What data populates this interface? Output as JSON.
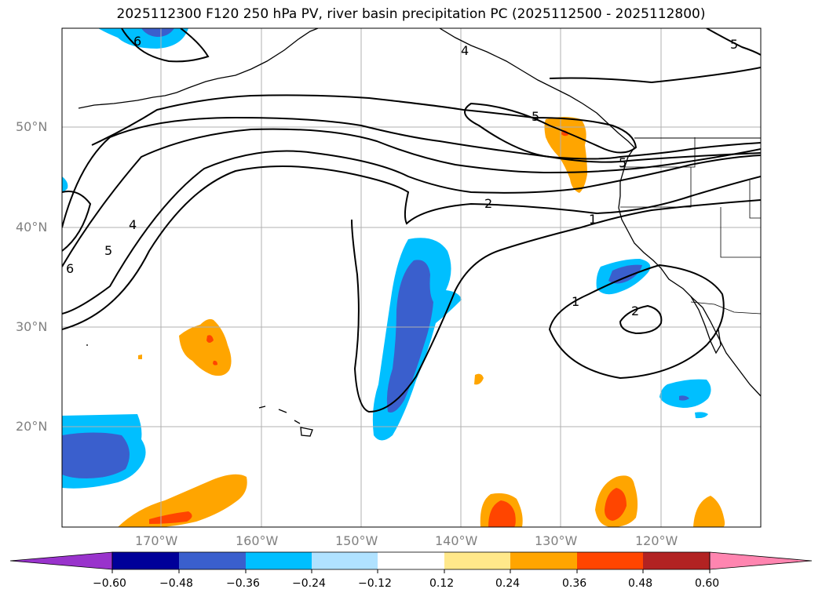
{
  "title": "2025112300 F120 250 hPa PV, river basin precipitation PC (2025112500 - 2025112800)",
  "lat_labels": [
    "50°N",
    "40°N",
    "30°N",
    "20°N"
  ],
  "lon_labels": [
    "170°W",
    "160°W",
    "150°W",
    "140°W",
    "130°W",
    "120°W"
  ],
  "colorbar": {
    "ticks": [
      "−0.60",
      "−0.48",
      "−0.36",
      "−0.24",
      "−0.12",
      "0.12",
      "0.24",
      "0.36",
      "0.48",
      "0.60"
    ],
    "colors": [
      "#9933cc",
      "#000099",
      "#3a5fcd",
      "#00bfff",
      "#b0e2ff",
      "#ffffff",
      "#ffe88a",
      "#ffa500",
      "#ff4500",
      "#b22222",
      "#ff85b0"
    ]
  },
  "contour_labels": [
    "6",
    "4",
    "5",
    "5",
    "2",
    "1",
    "1",
    "2",
    "5",
    "4",
    "6",
    "5"
  ]
}
